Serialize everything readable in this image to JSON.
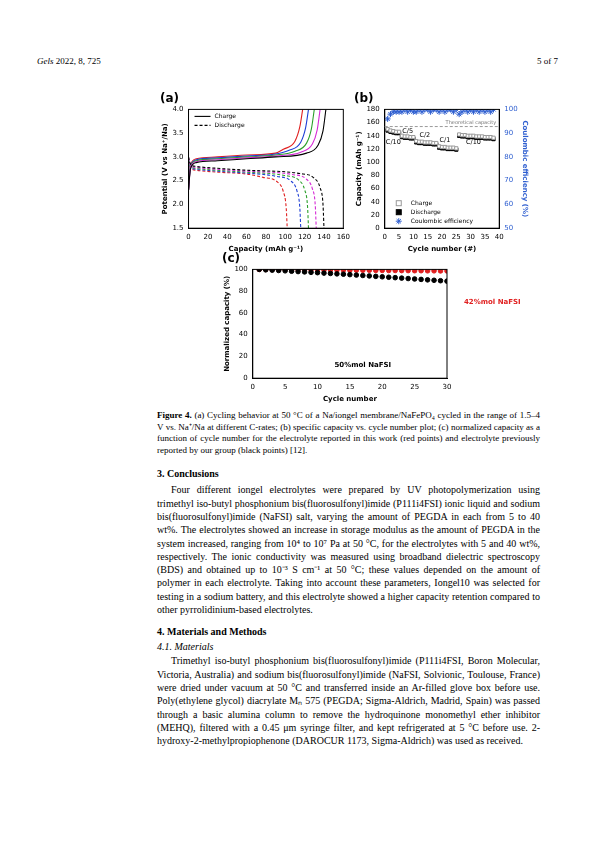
{
  "header": {
    "journal": "Gels",
    "citation": "2022, 8, 725",
    "page": "5 of 7"
  },
  "chart_data": [
    {
      "type": "line",
      "title": "(a)",
      "x_label": "Capacity (mAh g⁻¹)",
      "y_label": "Potential (V vs Na⁺/Na)",
      "xlim": [
        0,
        160
      ],
      "xticks": [
        0,
        20,
        40,
        60,
        80,
        100,
        120,
        140,
        160
      ],
      "ylim": [
        1.5,
        4.0
      ],
      "yticks": [
        1.5,
        {
          "value": 2,
          "label": "2.0"
        },
        2.5,
        {
          "value": 3,
          "label": "3.0"
        },
        3.5,
        {
          "value": 4,
          "label": "4.0"
        }
      ],
      "grid": false,
      "legend": "top-left",
      "series": [
        {
          "name": "Charge",
          "color": "#000000",
          "line_style": "solid",
          "marker": "none",
          "x": [
            0,
            2,
            8,
            30,
            60,
            90,
            122,
            134,
            139,
            142
          ],
          "values": [
            2.3,
            2.75,
            2.88,
            2.92,
            2.96,
            3.0,
            3.08,
            3.25,
            3.55,
            4.0
          ]
        },
        {
          "name": "Discharge",
          "color": "#000000",
          "line_style": "dashed",
          "marker": "none",
          "x": [
            0,
            2,
            8,
            30,
            60,
            115,
            130,
            136,
            139,
            140
          ],
          "values": [
            3.0,
            2.85,
            2.8,
            2.76,
            2.72,
            2.65,
            2.55,
            2.35,
            2.0,
            1.5
          ]
        },
        {
          "name": "Charge",
          "color": "#d62bd6",
          "line_style": "solid",
          "marker": "none",
          "x": [
            0,
            2,
            8,
            30,
            60,
            90,
            116,
            128,
            133,
            136
          ],
          "values": [
            2.3,
            2.77,
            2.9,
            2.94,
            2.98,
            3.02,
            3.1,
            3.27,
            3.57,
            4.0
          ]
        },
        {
          "name": "Discharge",
          "color": "#d62bd6",
          "line_style": "dashed",
          "marker": "none",
          "x": [
            0,
            2,
            8,
            30,
            60,
            107,
            122,
            128,
            131,
            132
          ],
          "values": [
            2.98,
            2.83,
            2.78,
            2.74,
            2.7,
            2.63,
            2.53,
            2.33,
            1.98,
            1.5
          ]
        },
        {
          "name": "Charge",
          "color": "#2ca02c",
          "line_style": "solid",
          "marker": "none",
          "x": [
            0,
            2,
            8,
            30,
            60,
            90,
            110,
            122,
            127,
            130
          ],
          "values": [
            2.3,
            2.79,
            2.92,
            2.96,
            3.0,
            3.04,
            3.12,
            3.29,
            3.59,
            4.0
          ]
        },
        {
          "name": "Discharge",
          "color": "#2ca02c",
          "line_style": "dashed",
          "marker": "none",
          "x": [
            0,
            2,
            8,
            30,
            60,
            99,
            114,
            120,
            123,
            124
          ],
          "values": [
            2.96,
            2.81,
            2.76,
            2.72,
            2.68,
            2.61,
            2.51,
            2.31,
            1.96,
            1.5
          ]
        },
        {
          "name": "Charge",
          "color": "#1f3fd6",
          "line_style": "solid",
          "marker": "none",
          "x": [
            0,
            2,
            8,
            30,
            60,
            90,
            104,
            116,
            121,
            124
          ],
          "values": [
            2.3,
            2.81,
            2.94,
            2.98,
            3.02,
            3.06,
            3.14,
            3.31,
            3.61,
            4.0
          ]
        },
        {
          "name": "Discharge",
          "color": "#1f3fd6",
          "line_style": "dashed",
          "marker": "none",
          "x": [
            0,
            2,
            8,
            30,
            60,
            91,
            106,
            112,
            115,
            116
          ],
          "values": [
            2.94,
            2.79,
            2.74,
            2.7,
            2.66,
            2.59,
            2.49,
            2.29,
            1.94,
            1.5
          ]
        },
        {
          "name": "Charge",
          "color": "#e02020",
          "line_style": "solid",
          "marker": "none",
          "x": [
            0,
            2,
            8,
            30,
            60,
            90,
            98,
            110,
            115,
            118
          ],
          "values": [
            2.3,
            2.83,
            2.96,
            3.0,
            3.04,
            3.08,
            3.16,
            3.33,
            3.63,
            4.0
          ]
        },
        {
          "name": "Discharge",
          "color": "#e02020",
          "line_style": "dashed",
          "marker": "none",
          "x": [
            0,
            2,
            8,
            30,
            60,
            77,
            92,
            98,
            101,
            102
          ],
          "values": [
            2.92,
            2.77,
            2.72,
            2.68,
            2.64,
            2.57,
            2.47,
            2.27,
            1.92,
            1.5
          ]
        }
      ]
    },
    {
      "type": "scatter",
      "title": "(b)",
      "x_label": "Cycle number (#)",
      "y_label": "Capacity (mAh g⁻¹)",
      "y2_label": "Coulombic efficiency (%)",
      "xlim": [
        0,
        40
      ],
      "xticks": [
        0,
        5,
        10,
        15,
        20,
        25,
        30,
        35,
        40
      ],
      "ylim": [
        0,
        180
      ],
      "yticks": [
        0,
        20,
        40,
        60,
        80,
        100,
        120,
        140,
        160,
        180
      ],
      "y2lim": [
        50,
        100
      ],
      "y2ticks": [
        50,
        60,
        70,
        80,
        90,
        100
      ],
      "grid": false,
      "legend": "bottom-left",
      "x": [
        1,
        2,
        3,
        4,
        5,
        6,
        7,
        8,
        9,
        10,
        11,
        12,
        13,
        14,
        15,
        16,
        17,
        18,
        19,
        20,
        21,
        22,
        23,
        24,
        25,
        26,
        27,
        28,
        29,
        30,
        31,
        32,
        33,
        34,
        35,
        36,
        37,
        38
      ],
      "series": [
        {
          "name": "Charge",
          "color": "#9a9a9a",
          "marker": "open_square",
          "values": [
            150,
            148,
            147,
            146,
            146,
            140,
            139,
            139,
            138,
            138,
            132,
            131,
            131,
            130,
            130,
            130,
            129,
            129,
            124,
            123,
            123,
            122,
            122,
            122,
            121,
            142,
            141,
            141,
            140,
            140,
            140,
            139,
            139,
            139,
            138,
            138,
            138,
            137
          ]
        },
        {
          "name": "Discharge",
          "color": "#000000",
          "marker": "square",
          "values": [
            148,
            146,
            145,
            144,
            144,
            138,
            137,
            137,
            136,
            136,
            130,
            129,
            129,
            128,
            128,
            128,
            127,
            127,
            122,
            121,
            121,
            120,
            120,
            120,
            119,
            140,
            139,
            139,
            138,
            138,
            138,
            137,
            137,
            137,
            136,
            136,
            136,
            135
          ]
        },
        {
          "name": "Coulombic efficiency",
          "color": "#2f5fd0",
          "marker": "star",
          "axis": "y2",
          "values": [
            96,
            98,
            99,
            99,
            99,
            99,
            100,
            99,
            100,
            99,
            99,
            100,
            99,
            100,
            100,
            99,
            100,
            100,
            99,
            100,
            99,
            100,
            100,
            99,
            100,
            98,
            99,
            100,
            99,
            100,
            99,
            100,
            99,
            100,
            99,
            100,
            99,
            100
          ]
        }
      ],
      "reference_lines": [
        {
          "y": 154,
          "label": "Theoretical capacity"
        }
      ],
      "annotations": [
        {
          "text": "C/10",
          "x": 3,
          "y": 130
        },
        {
          "text": "C/5",
          "x": 8,
          "y": 147
        },
        {
          "text": "C/2",
          "x": 14,
          "y": 140
        },
        {
          "text": "C/1",
          "x": 21,
          "y": 133
        },
        {
          "text": "C/10",
          "x": 31,
          "y": 130
        }
      ]
    },
    {
      "type": "scatter",
      "title": "(c)",
      "x_label": "Cycle number",
      "y_label": "Normalized capacity (%)",
      "xlim": [
        0,
        30
      ],
      "xticks": [
        0,
        5,
        10,
        15,
        20,
        25,
        30
      ],
      "ylim": [
        0,
        100
      ],
      "yticks": [
        0,
        20,
        40,
        60,
        80,
        100
      ],
      "grid": false,
      "x": [
        1,
        2,
        3,
        4,
        5,
        6,
        7,
        8,
        9,
        10,
        11,
        12,
        13,
        14,
        15,
        16,
        17,
        18,
        19,
        20,
        21,
        22,
        23,
        24,
        25,
        26,
        27,
        28,
        29,
        30
      ],
      "series": [
        {
          "color": "#000000",
          "marker": "circle",
          "values": [
            100,
            99.6,
            99.3,
            99,
            98.7,
            98.3,
            98,
            97.7,
            97.3,
            97,
            96.6,
            96.3,
            95.9,
            95.6,
            95.2,
            94.8,
            94.4,
            94,
            93.6,
            93.2,
            92.8,
            92.4,
            92,
            91.6,
            91.2,
            90.8,
            90.4,
            90,
            89.6,
            89.2
          ]
        },
        {
          "color": "#e02020",
          "marker": "circle",
          "values": [
            100,
            100,
            99.9,
            99.9,
            99.8,
            99.8,
            99.7,
            99.7,
            99.6,
            99.6,
            99.5,
            99.5,
            99.4,
            99.4,
            99.3,
            99.3,
            99.2,
            99.2,
            99.1,
            99.1,
            99,
            99,
            98.9,
            98.9,
            98.8,
            98.8,
            98.7,
            98.7,
            98.6,
            98.6
          ]
        }
      ],
      "annotations": [
        {
          "text": "50%mol NaFSI",
          "x": 17,
          "y": 12,
          "color": "#000000"
        },
        {
          "text": "42%mol NaFSI",
          "x": 37,
          "y": 70,
          "color": "#e02020"
        }
      ]
    }
  ],
  "caption": {
    "label": "Figure 4.",
    "text": "(a) Cycling behavior at 50 °C of a Na/iongel membrane/NaFePO₄ cycled in the range of 1.5–4 V vs. Na⁺/Na at different C-rates; (b) specific capacity vs. cycle number plot; (c) normalized capacity as a function of cycle number for the electrolyte reported in this work (red points) and electrolyte previously reported by our group (black points) [12]."
  },
  "sections": [
    {
      "heading": "3. Conclusions",
      "paragraphs": [
        "Four different iongel electrolytes were prepared by UV photopolymerization using trimethyl iso-butyl phosphonium bis(fluorosulfonyl)imide (P111i4FSI) ionic liquid and sodium bis(fluorosulfonyl)imide (NaFSI) salt, varying the amount of PEGDA in each from 5 to 40 wt%. The electrolytes showed an increase in storage modulus as the amount of PEGDA in the system increased, ranging from 10⁴ to 10⁷ Pa at 50 °C, for the electrolytes with 5 and 40 wt%, respectively. The ionic conductivity was measured using broadband dielectric spectroscopy (BDS) and obtained up to 10⁻³ S cm⁻¹ at 50 °C; these values depended on the amount of polymer in each electrolyte. Taking into account these parameters, Iongel10 was selected for testing in a sodium battery, and this electrolyte showed a higher capacity retention compared to other pyrrolidinium-based electrolytes."
      ]
    },
    {
      "heading": "4. Materials and Methods",
      "subsections": [
        {
          "heading": "4.1. Materials",
          "paragraphs": [
            "Trimethyl iso-butyl phosphonium bis(fluorosulfonyl)imide (P111i4FSI, Boron Molecular, Victoria, Australia) and sodium bis(fluorosulfonyl)imide (NaFSI, Solvionic, Toulouse, France) were dried under vacuum at 50 °C and transferred inside an Ar-filled glove box before use. Poly(ethylene glycol) diacrylate Mₙ 575 (PEGDA; Sigma-Aldrich, Madrid, Spain) was passed through a basic alumina column to remove the hydroquinone monomethyl ether inhibitor (MEHQ), filtered with a 0.45 μm syringe filter, and kept refrigerated at 5 °C before use. 2-hydroxy-2-methylpropiophenone (DAROCUR 1173, Sigma-Aldrich) was used as received."
          ]
        }
      ]
    }
  ]
}
